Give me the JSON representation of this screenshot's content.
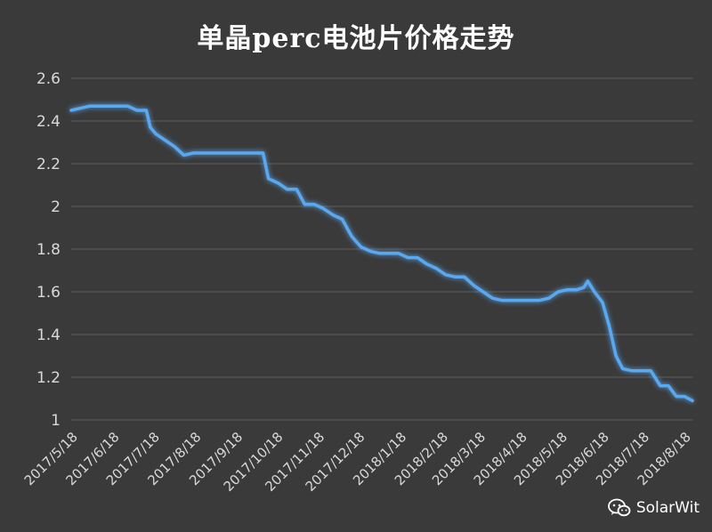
{
  "chart_data": {
    "type": "line",
    "title": "单晶perc电池片价格走势",
    "xlabel": "",
    "ylabel": "",
    "ylim": [
      1,
      2.6
    ],
    "yticks": [
      "2.6",
      "2.4",
      "2.2",
      "2",
      "1.8",
      "1.6",
      "1.4",
      "1.2",
      "1"
    ],
    "grid": true,
    "legend": "none",
    "x_tick_labels": [
      "2017/5/18",
      "2017/6/18",
      "2017/7/18",
      "2017/8/18",
      "2017/9/18",
      "2017/10/18",
      "2017/11/18",
      "2017/12/18",
      "2018/1/18",
      "2018/2/18",
      "2018/3/18",
      "2018/4/18",
      "2018/5/18",
      "2018/6/18",
      "2018/7/18",
      "2018/8/18"
    ],
    "x_start": "2017/5/18",
    "series": [
      {
        "color": "#5aa8f0",
        "points": [
          [
            "2017/5/18",
            2.45
          ],
          [
            "2017/5/25",
            2.46
          ],
          [
            "2017/6/1",
            2.47
          ],
          [
            "2017/6/8",
            2.47
          ],
          [
            "2017/6/15",
            2.47
          ],
          [
            "2017/6/22",
            2.47
          ],
          [
            "2017/6/29",
            2.47
          ],
          [
            "2017/7/6",
            2.45
          ],
          [
            "2017/7/13",
            2.45
          ],
          [
            "2017/7/16",
            2.37
          ],
          [
            "2017/7/20",
            2.34
          ],
          [
            "2017/7/27",
            2.31
          ],
          [
            "2017/8/3",
            2.28
          ],
          [
            "2017/8/10",
            2.24
          ],
          [
            "2017/8/17",
            2.25
          ],
          [
            "2017/8/24",
            2.25
          ],
          [
            "2017/9/1",
            2.25
          ],
          [
            "2017/9/8",
            2.25
          ],
          [
            "2017/9/15",
            2.25
          ],
          [
            "2017/9/22",
            2.25
          ],
          [
            "2017/10/1",
            2.25
          ],
          [
            "2017/10/8",
            2.25
          ],
          [
            "2017/10/12",
            2.13
          ],
          [
            "2017/10/19",
            2.11
          ],
          [
            "2017/10/26",
            2.08
          ],
          [
            "2017/11/2",
            2.08
          ],
          [
            "2017/11/8",
            2.01
          ],
          [
            "2017/11/15",
            2.01
          ],
          [
            "2017/11/22",
            1.99
          ],
          [
            "2017/11/29",
            1.96
          ],
          [
            "2017/12/6",
            1.94
          ],
          [
            "2017/12/13",
            1.86
          ],
          [
            "2017/12/20",
            1.81
          ],
          [
            "2017/12/27",
            1.79
          ],
          [
            "2018/1/3",
            1.78
          ],
          [
            "2018/1/10",
            1.78
          ],
          [
            "2018/1/17",
            1.78
          ],
          [
            "2018/1/24",
            1.76
          ],
          [
            "2018/1/31",
            1.76
          ],
          [
            "2018/2/7",
            1.73
          ],
          [
            "2018/2/14",
            1.71
          ],
          [
            "2018/2/21",
            1.68
          ],
          [
            "2018/2/28",
            1.67
          ],
          [
            "2018/3/7",
            1.67
          ],
          [
            "2018/3/14",
            1.63
          ],
          [
            "2018/3/21",
            1.6
          ],
          [
            "2018/3/28",
            1.57
          ],
          [
            "2018/4/4",
            1.56
          ],
          [
            "2018/4/11",
            1.56
          ],
          [
            "2018/4/18",
            1.56
          ],
          [
            "2018/4/25",
            1.56
          ],
          [
            "2018/5/2",
            1.56
          ],
          [
            "2018/5/9",
            1.57
          ],
          [
            "2018/5/16",
            1.6
          ],
          [
            "2018/5/23",
            1.61
          ],
          [
            "2018/5/30",
            1.61
          ],
          [
            "2018/6/4",
            1.62
          ],
          [
            "2018/6/7",
            1.65
          ],
          [
            "2018/6/12",
            1.6
          ],
          [
            "2018/6/18",
            1.55
          ],
          [
            "2018/6/23",
            1.44
          ],
          [
            "2018/6/28",
            1.3
          ],
          [
            "2018/7/3",
            1.24
          ],
          [
            "2018/7/10",
            1.23
          ],
          [
            "2018/7/17",
            1.23
          ],
          [
            "2018/7/24",
            1.23
          ],
          [
            "2018/7/31",
            1.16
          ],
          [
            "2018/8/6",
            1.16
          ],
          [
            "2018/8/12",
            1.11
          ],
          [
            "2018/8/18",
            1.11
          ],
          [
            "2018/8/24",
            1.09
          ]
        ]
      }
    ]
  },
  "watermark": {
    "text": "SolarWit",
    "icon": "wechat-icon"
  },
  "colors": {
    "background": "#3a3a3a",
    "grid": "#5e5e5e",
    "line": "#5aa8f0",
    "text": "#d9d9d9"
  }
}
